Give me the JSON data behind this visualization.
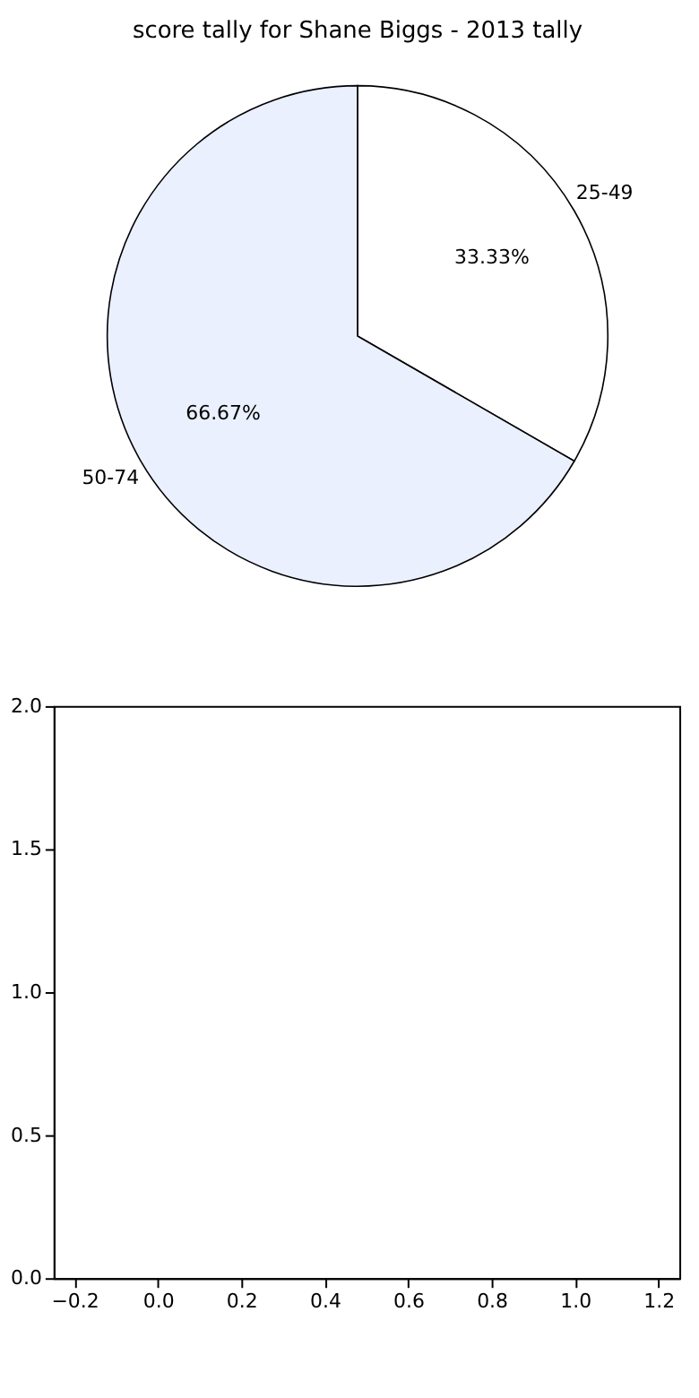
{
  "chart_data": [
    {
      "type": "pie",
      "title": "score tally for Shane Biggs - 2013 tally",
      "categories": [
        "25-49",
        "50-74"
      ],
      "values": [
        33.33,
        66.67
      ],
      "colors": [
        "#ffffff",
        "#eaf0fd"
      ],
      "value_labels": [
        "33.33%",
        "66.67%"
      ],
      "legend": false
    },
    {
      "type": "scatter",
      "xlim": [
        -0.25,
        1.25
      ],
      "ylim": [
        0,
        2
      ],
      "xticks": [
        -0.2,
        {
          "value": 0,
          "label": "0.0"
        },
        0.2,
        0.4,
        0.6,
        0.8,
        {
          "value": 1,
          "label": "1.0"
        },
        1.2
      ],
      "yticks": [
        {
          "value": 0,
          "label": "0.0"
        },
        0.5,
        {
          "value": 1,
          "label": "1.0"
        },
        1.5,
        {
          "value": 2,
          "label": "2.0"
        }
      ]
    }
  ]
}
